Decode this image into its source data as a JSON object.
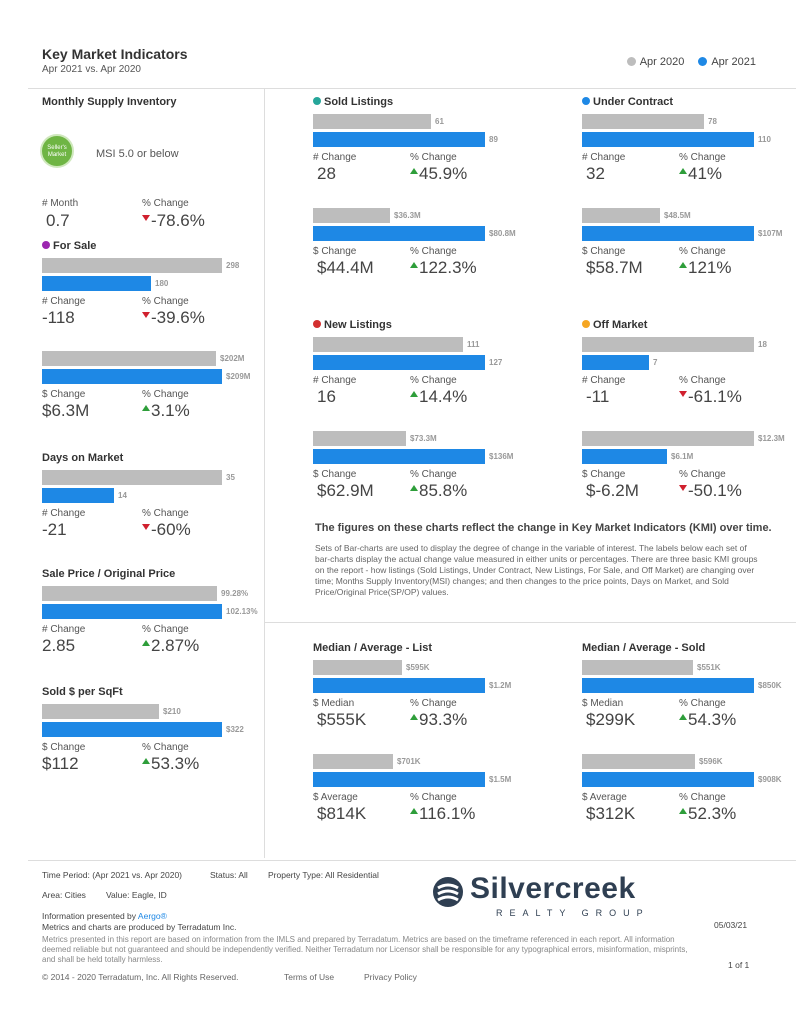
{
  "header": {
    "title": "Key Market Indicators",
    "subtitle": "Apr 2021 vs. Apr 2020",
    "legend": [
      {
        "label": "Apr 2020",
        "color": "#bdbdbd"
      },
      {
        "label": "Apr 2021",
        "color": "#1e88e5"
      }
    ]
  },
  "msi": {
    "title": "Monthly Supply Inventory",
    "badge_text": "Seller's Market",
    "label": "MSI 5.0 or below",
    "m1_label": "# Month",
    "m1_value": "0.7",
    "m2_label": "% Change",
    "m2_value": "-78.6%"
  },
  "for_sale": {
    "title": "For Sale",
    "dot_color": "#9c27b0",
    "count": {
      "prev": "298",
      "curr": "180",
      "prev_val": 298,
      "curr_val": 180,
      "m1_label": "# Change",
      "m1_value": "-118",
      "m2_label": "% Change",
      "m2_value": "-39.6%"
    },
    "dollars": {
      "prev": "$202M",
      "curr": "$209M",
      "prev_val": 202,
      "curr_val": 209,
      "m1_label": "$ Change",
      "m1_value": "$6.3M",
      "m2_label": "% Change",
      "m2_value": "3.1%"
    }
  },
  "dom": {
    "title": "Days on Market",
    "prev": "35",
    "curr": "14",
    "prev_val": 35,
    "curr_val": 14,
    "m1_label": "# Change",
    "m1_value": "-21",
    "m2_label": "% Change",
    "m2_value": "-60%"
  },
  "spop": {
    "title": "Sale Price / Original Price",
    "prev": "99.28%",
    "curr": "102.13%",
    "prev_val": 99.28,
    "curr_val": 102.13,
    "m1_label": "# Change",
    "m1_value": "2.85",
    "m2_label": "% Change",
    "m2_value": "2.87%"
  },
  "sqft": {
    "title": "Sold $ per SqFt",
    "prev": "$210",
    "curr": "$322",
    "prev_val": 210,
    "curr_val": 322,
    "m1_label": "$ Change",
    "m1_value": "$112",
    "m2_label": "% Change",
    "m2_value": "53.3%"
  },
  "sold": {
    "title": "Sold Listings",
    "dot_color": "#26a69a",
    "count": {
      "prev": "61",
      "curr": "89",
      "prev_val": 61,
      "curr_val": 89,
      "m1_label": "# Change",
      "m1_value": "28",
      "m2_label": "% Change",
      "m2_value": "45.9%"
    },
    "dollars": {
      "prev": "$36.3M",
      "curr": "$80.8M",
      "prev_val": 36.3,
      "curr_val": 80.8,
      "m1_label": "$ Change",
      "m1_value": "$44.4M",
      "m2_label": "% Change",
      "m2_value": "122.3%"
    }
  },
  "under_contract": {
    "title": "Under Contract",
    "dot_color": "#1e88e5",
    "count": {
      "prev": "78",
      "curr": "110",
      "prev_val": 78,
      "curr_val": 110,
      "m1_label": "# Change",
      "m1_value": "32",
      "m2_label": "% Change",
      "m2_value": "41%"
    },
    "dollars": {
      "prev": "$48.5M",
      "curr": "$107M",
      "prev_val": 48.5,
      "curr_val": 107,
      "m1_label": "$ Change",
      "m1_value": "$58.7M",
      "m2_label": "% Change",
      "m2_value": "121%"
    }
  },
  "new_listings": {
    "title": "New Listings",
    "dot_color": "#d32f2f",
    "count": {
      "prev": "111",
      "curr": "127",
      "prev_val": 111,
      "curr_val": 127,
      "m1_label": "# Change",
      "m1_value": "16",
      "m2_label": "% Change",
      "m2_value": "14.4%"
    },
    "dollars": {
      "prev": "$73.3M",
      "curr": "$136M",
      "prev_val": 73.3,
      "curr_val": 136,
      "m1_label": "$ Change",
      "m1_value": "$62.9M",
      "m2_label": "% Change",
      "m2_value": "85.8%"
    }
  },
  "off_market": {
    "title": "Off Market",
    "dot_color": "#f5a623",
    "count": {
      "prev": "18",
      "curr": "7",
      "prev_val": 18,
      "curr_val": 7,
      "m1_label": "# Change",
      "m1_value": "-11",
      "m2_label": "% Change",
      "m2_value": "-61.1%"
    },
    "dollars": {
      "prev": "$12.3M",
      "curr": "$6.1M",
      "prev_val": 12.3,
      "curr_val": 6.1,
      "m1_label": "$ Change",
      "m1_value": "$-6.2M",
      "m2_label": "% Change",
      "m2_value": "-50.1%"
    }
  },
  "kmi": {
    "heading": "The figures on these charts reflect the change in Key Market Indicators (KMI) over time.",
    "body": "Sets of Bar-charts are used to display the degree of change in the variable of interest. The labels below each set of bar-charts display the actual change value measured in either units or percentages. There are three basic KMI groups on the report - how listings (Sold Listings, Under Contract, New Listings, For Sale, and Off Market) are changing over time; Months Supply Inventory(MSI) changes; and then changes to the price points, Days on Market, and Sold Price/Original Price(SP/OP) values."
  },
  "list_price": {
    "title": "Median / Average - List",
    "median": {
      "prev": "$595K",
      "curr": "$1.2M",
      "prev_val": 595,
      "curr_val": 1150,
      "m1_label": "$ Median",
      "m1_value": "$555K",
      "m2_label": "% Change",
      "m2_value": "93.3%"
    },
    "average": {
      "prev": "$701K",
      "curr": "$1.5M",
      "prev_val": 701,
      "curr_val": 1515,
      "m1_label": "$ Average",
      "m1_value": "$814K",
      "m2_label": "% Change",
      "m2_value": "116.1%"
    }
  },
  "sold_price": {
    "title": "Median / Average - Sold",
    "median": {
      "prev": "$551K",
      "curr": "$850K",
      "prev_val": 551,
      "curr_val": 850,
      "m1_label": "$ Median",
      "m1_value": "$299K",
      "m2_label": "% Change",
      "m2_value": "54.3%"
    },
    "average": {
      "prev": "$596K",
      "curr": "$908K",
      "prev_val": 596,
      "curr_val": 908,
      "m1_label": "$ Average",
      "m1_value": "$312K",
      "m2_label": "% Change",
      "m2_value": "52.3%"
    }
  },
  "footer": {
    "time_period": "Time Period: (Apr 2021 vs. Apr 2020)",
    "status": "Status: All",
    "property_type": "Property Type: All Residential",
    "area": "Area: Cities",
    "value": "Value: Eagle, ID",
    "presented_by": "Information presented by ",
    "aergo": "Aergo®",
    "produced_by": "Metrics and charts are produced by Terradatum Inc.",
    "disclaimer": "Metrics presented in this report are based on information from the IMLS and prepared by Terradatum. Metrics are based on the timeframe referenced in each report. All information deemed reliable but not guaranteed and should be independently verified. Neither Terradatum nor Licensor shall be responsible for any typographical errors, misinformation, misprints, and shall be held totally harmless.",
    "copyright": "© 2014 - 2020 Terradatum, Inc. All Rights Reserved.",
    "terms": "Terms of Use",
    "privacy": "Privacy Policy",
    "date": "05/03/21",
    "page": "1 of 1",
    "logo_name": "Silvercreek",
    "logo_sub": "REALTY GROUP"
  }
}
